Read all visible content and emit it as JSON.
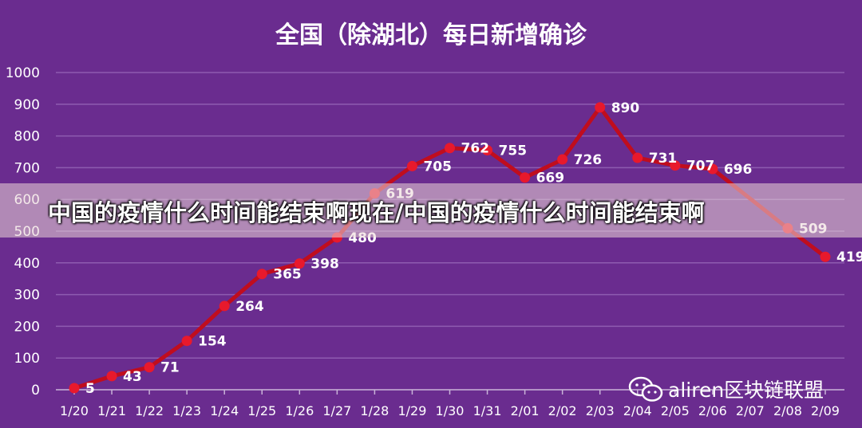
{
  "chart_data": {
    "type": "line",
    "title": "全国（除湖北）每日新增确诊",
    "categories": [
      "1/20",
      "1/21",
      "1/22",
      "1/23",
      "1/24",
      "1/25",
      "1/26",
      "1/27",
      "1/28",
      "1/29",
      "1/30",
      "1/31",
      "2/01",
      "2/02",
      "2/03",
      "2/04",
      "2/05",
      "2/06",
      "2/07",
      "2/08",
      "2/09"
    ],
    "series": [
      {
        "values": [
          5,
          43,
          71,
          154,
          264,
          365,
          398,
          480,
          619,
          705,
          762,
          755,
          669,
          726,
          890,
          731,
          707,
          696,
          null,
          509,
          419
        ]
      }
    ],
    "data_labels": [
      "5",
      "43",
      "71",
      "154",
      "264",
      "365",
      "398",
      "480",
      "619",
      "705",
      "762",
      "755",
      "669",
      "726",
      "890",
      "731",
      "707",
      "696",
      "",
      "509",
      "419"
    ],
    "y_ticks": [
      "0",
      "100",
      "200",
      "300",
      "400",
      "500",
      "600",
      "700",
      "800",
      "900",
      "1000"
    ],
    "ylim": [
      0,
      1000
    ],
    "grid": true,
    "legend": "none",
    "colors": {
      "background": "#6a2c8f",
      "line": "#c00d1e",
      "marker": "#e8192c",
      "grid": "#8e5bb0"
    }
  },
  "banner": {
    "text": "中国的疫情什么时间能结束啊现在/中国的疫情什么时间能结束啊"
  },
  "watermark": {
    "icon": "wechat-icon",
    "text": "aliren区块链联盟"
  }
}
